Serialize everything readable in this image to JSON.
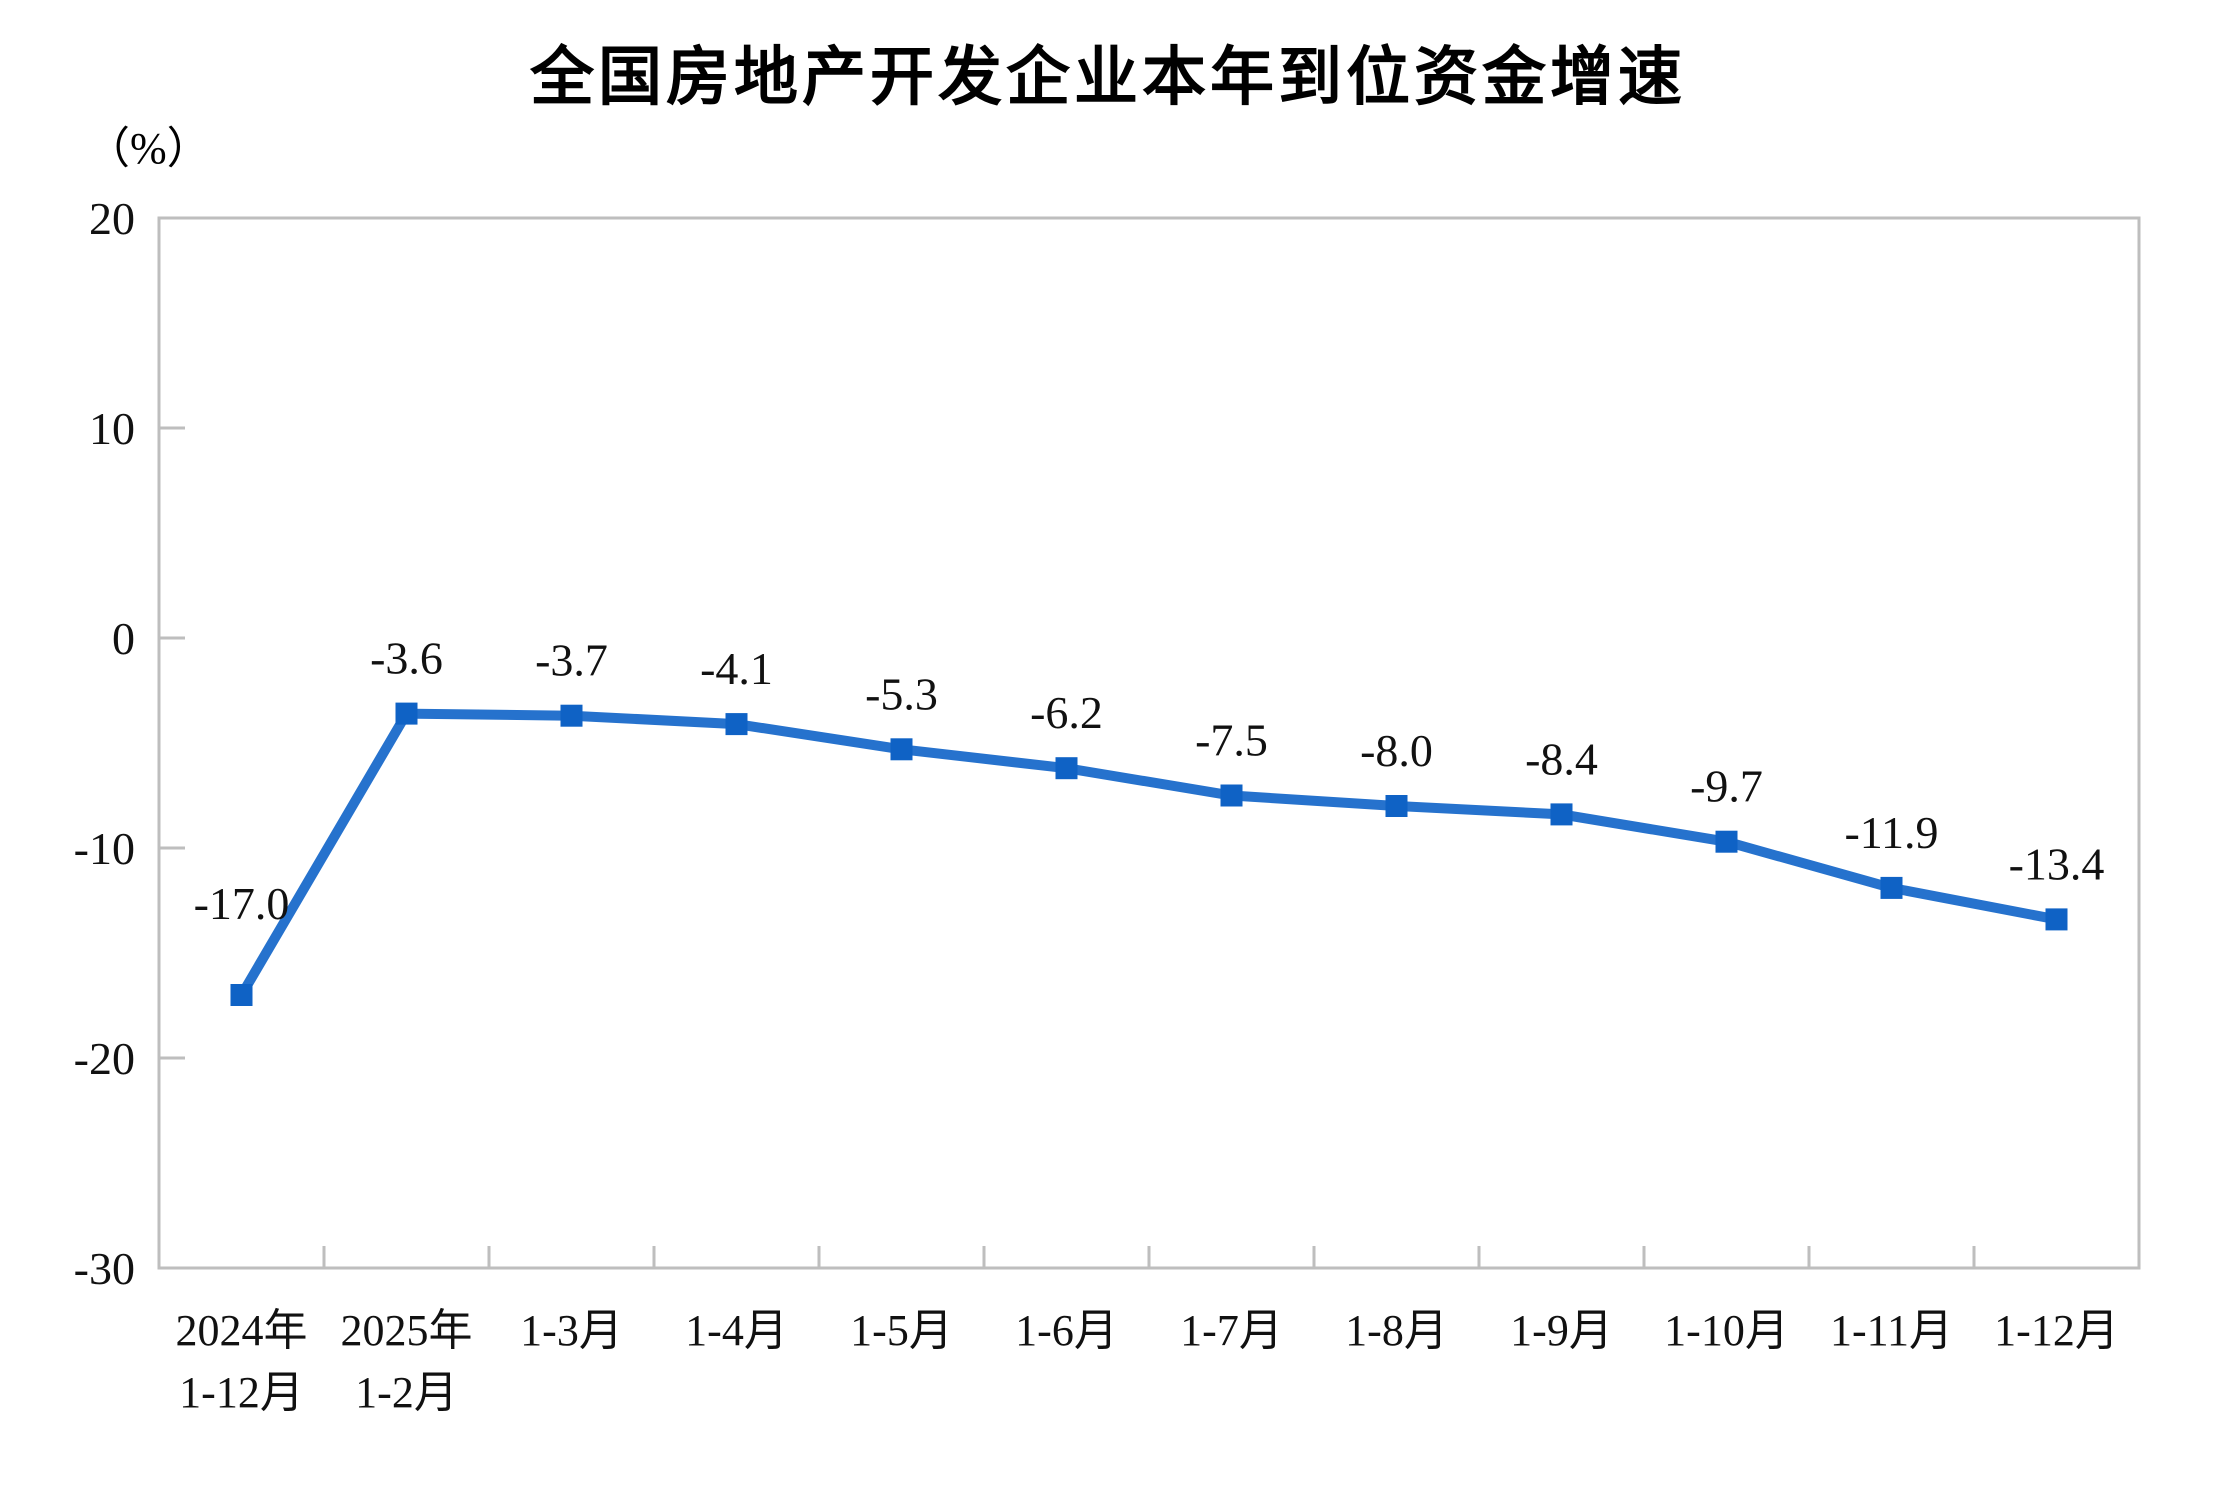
{
  "chart_data": {
    "type": "line",
    "title": "全国房地产开发企业本年到位资金增速",
    "unit": "（%）",
    "categories": [
      [
        "2024年",
        "1-12月"
      ],
      [
        "2025年",
        "1-2月"
      ],
      [
        "1-3月"
      ],
      [
        "1-4月"
      ],
      [
        "1-5月"
      ],
      [
        "1-6月"
      ],
      [
        "1-7月"
      ],
      [
        "1-8月"
      ],
      [
        "1-9月"
      ],
      [
        "1-10月"
      ],
      [
        "1-11月"
      ],
      [
        "1-12月"
      ]
    ],
    "values": [
      -17.0,
      -3.6,
      -3.7,
      -4.1,
      -5.3,
      -6.2,
      -7.5,
      -8.0,
      -8.4,
      -9.7,
      -11.9,
      -13.4
    ],
    "labels": [
      "-17.0",
      "-3.6",
      "-3.7",
      "-4.1",
      "-5.3",
      "-6.2",
      "-7.5",
      "-8.0",
      "-8.4",
      "-9.7",
      "-11.9",
      "-13.4"
    ],
    "ylim": [
      -30,
      20
    ],
    "yticks": [
      20,
      10,
      0,
      -10,
      -20,
      -30
    ],
    "grid": false,
    "legend": "none",
    "xlabel": "",
    "ylabel": "（%）",
    "line_color": "#2672CD",
    "marker_color": "#0F62C5",
    "marker": "square",
    "axis_color": "#BEBEBE",
    "text_color": "#111111"
  }
}
